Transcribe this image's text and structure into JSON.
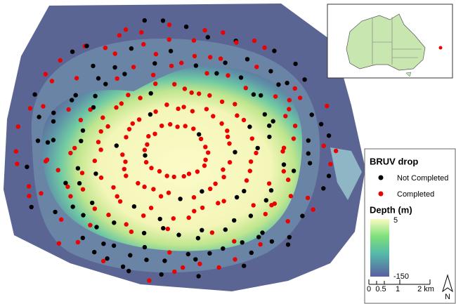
{
  "legend": {
    "title": "BRUV drop",
    "items": [
      "Not Completed",
      "Completed"
    ]
  },
  "depth_legend": {
    "title": "Depth (m)",
    "max": 5,
    "min": -150
  },
  "scale_bar": {
    "labels": [
      "0",
      "0.5",
      "1",
      "2 km"
    ]
  },
  "north_arrow": {
    "label": "N"
  }
}
